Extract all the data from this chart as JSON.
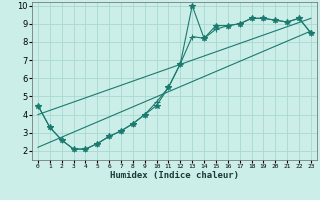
{
  "xlabel": "Humidex (Indice chaleur)",
  "bg_color": "#cceee8",
  "grid_color": "#aad8d2",
  "line_color": "#1a7a6e",
  "xlim": [
    -0.5,
    23.5
  ],
  "ylim": [
    1.5,
    10.2
  ],
  "xticks": [
    0,
    1,
    2,
    3,
    4,
    5,
    6,
    7,
    8,
    9,
    10,
    11,
    12,
    13,
    14,
    15,
    16,
    17,
    18,
    19,
    20,
    21,
    22,
    23
  ],
  "yticks": [
    2,
    3,
    4,
    5,
    6,
    7,
    8,
    9,
    10
  ],
  "lines": [
    {
      "x": [
        0,
        1,
        2,
        3,
        4,
        5,
        6,
        7,
        8,
        9,
        10,
        11,
        12,
        13,
        14,
        15,
        16,
        17,
        18,
        19,
        20,
        21,
        22,
        23
      ],
      "y": [
        4.5,
        3.3,
        2.6,
        2.1,
        2.1,
        2.4,
        2.8,
        3.1,
        3.5,
        4.0,
        4.5,
        5.5,
        6.8,
        10.0,
        8.2,
        8.9,
        8.9,
        9.0,
        9.3,
        9.3,
        9.2,
        9.1,
        9.3,
        8.5
      ],
      "marker": "*",
      "markersize": 4
    },
    {
      "x": [
        0,
        1,
        2,
        3,
        4,
        5,
        6,
        7,
        8,
        9,
        10,
        11,
        12,
        13,
        14,
        15,
        16,
        17,
        18,
        19,
        20,
        21,
        22,
        23
      ],
      "y": [
        4.5,
        3.3,
        2.6,
        2.1,
        2.1,
        2.4,
        2.8,
        3.1,
        3.5,
        4.0,
        4.7,
        5.5,
        6.8,
        8.3,
        8.2,
        8.7,
        8.9,
        9.0,
        9.3,
        9.3,
        9.2,
        9.1,
        9.3,
        8.5
      ],
      "marker": "+",
      "markersize": 4
    },
    {
      "x": [
        0,
        23
      ],
      "y": [
        2.2,
        8.6
      ],
      "marker": null,
      "markersize": 0
    },
    {
      "x": [
        0,
        23
      ],
      "y": [
        4.0,
        9.3
      ],
      "marker": null,
      "markersize": 0
    }
  ]
}
